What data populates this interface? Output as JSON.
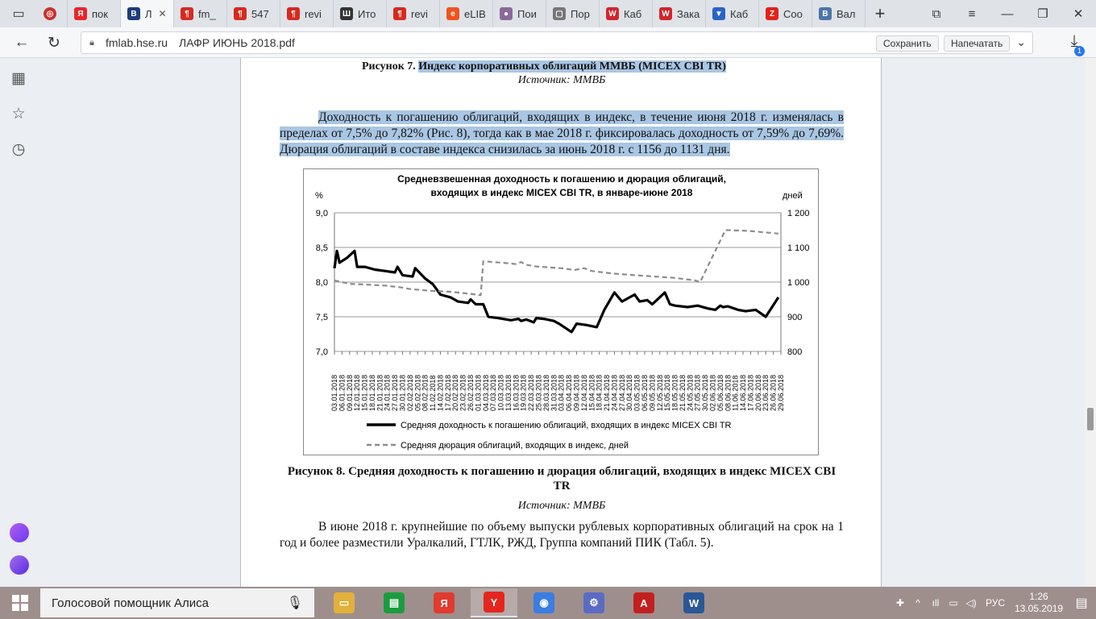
{
  "browser": {
    "tabs": [
      {
        "label": "пок",
        "icon": "yandex-icon",
        "color": "#e8262b",
        "glyph": "Я"
      },
      {
        "label": "Л",
        "icon": "hse-icon",
        "color": "#1d3d7a",
        "glyph": "В",
        "active": true
      },
      {
        "label": "fm_",
        "icon": "pdf-icon",
        "color": "#d62a1f",
        "glyph": "¶"
      },
      {
        "label": "547",
        "icon": "pdf-icon",
        "color": "#d62a1f",
        "glyph": "¶"
      },
      {
        "label": "revi",
        "icon": "pdf-icon",
        "color": "#d62a1f",
        "glyph": "¶"
      },
      {
        "label": "Ито",
        "icon": "bars-icon",
        "color": "#333333",
        "glyph": "Ш"
      },
      {
        "label": "revi",
        "icon": "pdf-icon",
        "color": "#d62a1f",
        "glyph": "¶"
      },
      {
        "label": "eLIB",
        "icon": "elibrary-icon",
        "color": "#f0531f",
        "glyph": "e"
      },
      {
        "label": "Пои",
        "icon": "avatar-icon",
        "color": "#8a6a9a",
        "glyph": "●"
      },
      {
        "label": "Пор",
        "icon": "document-icon",
        "color": "#777777",
        "glyph": "▢"
      },
      {
        "label": "Каб",
        "icon": "w-icon",
        "color": "#d0262c",
        "glyph": "W"
      },
      {
        "label": "Зака",
        "icon": "w-icon",
        "color": "#d0262c",
        "glyph": "W"
      },
      {
        "label": "Каб",
        "icon": "shield-icon",
        "color": "#2b63c4",
        "glyph": "▼"
      },
      {
        "label": "Соо",
        "icon": "zen-icon",
        "color": "#e2231a",
        "glyph": "Z"
      },
      {
        "label": "Вал",
        "icon": "vk-icon",
        "color": "#4a76a8",
        "glyph": "B"
      }
    ],
    "url_host": "fmlab.hse.ru",
    "url_title": "ЛАФР ИЮНЬ 2018.pdf",
    "save_label": "Сохранить",
    "print_label": "Напечатать",
    "downloads_count": "1"
  },
  "pdf": {
    "fig7_caption_prefix": "Рисунок 7.",
    "fig7_caption_title": "Индекс корпоративных облигаций ММВБ (MICEX CBI TR)",
    "fig7_source": "Источник: ММВБ",
    "para1": "Доходность к погашению облигаций, входящих в индекс, в течение июня 2018 г. изменялась в пределах от 7,5% до 7,82% (Рис. 8), тогда как в мае 2018 г. фиксировалась доходность от 7,59% до 7,69%. Дюрация облигаций в составе индекса снизилась за июнь 2018 г. с 1156 до 1131 дня.",
    "fig8_caption": "Рисунок 8. Средняя доходность к погашению и дюрация облигаций, входящих в индекс MICEX CBI TR",
    "fig8_source": "Источник: ММВБ",
    "para2": "В июне 2018 г. крупнейшие по объему выпуски рублевых корпоративных облигаций на срок на 1 год и более разместили Уралкалий, ГТЛК, РЖД, Группа компаний ПИК (Табл. 5)."
  },
  "chart_data": {
    "type": "line",
    "title": "Средневзвешенная доходность к погашению и дюрация облигаций, входящих  в индекс MICEX CBI TR, в январе-июне 2018",
    "ylabel_left": "%",
    "ylabel_right": "дней",
    "ylim_left": [
      7.0,
      9.0
    ],
    "ylim_right": [
      800,
      1200
    ],
    "yticks_left": [
      "9,0",
      "8,5",
      "8,0",
      "7,5",
      "7,0"
    ],
    "yticks_right": [
      "1 200",
      "1 100",
      "1 000",
      "900",
      "800"
    ],
    "grid": true,
    "legend_position": "bottom",
    "x_labels": [
      "03.01.2018",
      "06.01.2018",
      "09.01.2018",
      "12.01.2018",
      "15.01.2018",
      "18.01.2018",
      "21.01.2018",
      "24.01.2018",
      "27.01.2018",
      "30.01.2018",
      "02.02.2018",
      "05.02.2018",
      "08.02.2018",
      "11.02.2018",
      "14.02.2018",
      "17.02.2018",
      "20.02.2018",
      "23.02.2018",
      "26.02.2018",
      "01.03.2018",
      "04.03.2018",
      "07.03.2018",
      "10.03.2018",
      "13.03.2018",
      "16.03.2018",
      "19.03.2018",
      "22.03.2018",
      "25.03.2018",
      "28.03.2018",
      "31.03.2018",
      "03.04.2018",
      "06.04.2018",
      "09.04.2018",
      "12.04.2018",
      "15.04.2018",
      "18.04.2018",
      "21.04.2018",
      "24.04.2018",
      "27.04.2018",
      "30.04.2018",
      "03.05.2018",
      "06.05.2018",
      "09.05.2018",
      "12.05.2018",
      "15.05.2018",
      "18.05.2018",
      "21.05.2018",
      "24.05.2018",
      "27.05.2018",
      "30.05.2018",
      "02.06.2018",
      "05.06.2018",
      "08.06.2018",
      "11.06.2018",
      "14.06.2018",
      "17.06.2018",
      "20.06.2018",
      "23.06.2018",
      "26.06.2018",
      "29.06.2018"
    ],
    "series": [
      {
        "name": "Средняя доходность к погашению облигаций, входящих в индекс MICEX CBI TR",
        "axis": "left",
        "style": "solid",
        "color": "#000000",
        "x": [
          0,
          1,
          2,
          5,
          8,
          9,
          12,
          16,
          20,
          24,
          25,
          27,
          31,
          32,
          36,
          39,
          42,
          46,
          49,
          53,
          54,
          56,
          59,
          61,
          65,
          70,
          73,
          74,
          76,
          79,
          80,
          83,
          87,
          89,
          94,
          96,
          100,
          104,
          107,
          111,
          114,
          119,
          121,
          124,
          126,
          131,
          133,
          135,
          140,
          144,
          148,
          151,
          153,
          154,
          156,
          160,
          163,
          167,
          171,
          176
        ],
        "values": [
          8.2,
          8.45,
          8.28,
          8.35,
          8.45,
          8.22,
          8.22,
          8.18,
          8.16,
          8.14,
          8.22,
          8.1,
          8.08,
          8.2,
          8.05,
          7.97,
          7.82,
          7.78,
          7.72,
          7.7,
          7.75,
          7.68,
          7.68,
          7.5,
          7.48,
          7.45,
          7.47,
          7.44,
          7.46,
          7.42,
          7.48,
          7.47,
          7.44,
          7.4,
          7.28,
          7.4,
          7.38,
          7.35,
          7.6,
          7.85,
          7.72,
          7.82,
          7.72,
          7.74,
          7.68,
          7.85,
          7.68,
          7.66,
          7.64,
          7.66,
          7.62,
          7.6,
          7.66,
          7.64,
          7.65,
          7.6,
          7.58,
          7.6,
          7.5,
          7.78
        ]
      },
      {
        "name": "Средняя дюрация облигаций, входящих в индекс, дней",
        "axis": "right",
        "style": "dashed",
        "color": "#8c8c8c",
        "x": [
          0,
          6,
          12,
          20,
          26,
          30,
          38,
          46,
          54,
          58,
          59,
          63,
          68,
          72,
          74,
          76,
          80,
          90,
          95,
          99,
          102,
          110,
          119,
          127,
          135,
          143,
          145,
          155,
          164,
          176
        ],
        "values": [
          1005,
          995,
          993,
          990,
          985,
          980,
          975,
          972,
          966,
          962,
          1060,
          1058,
          1055,
          1052,
          1058,
          1050,
          1045,
          1040,
          1035,
          1040,
          1032,
          1025,
          1020,
          1016,
          1012,
          1005,
          1000,
          1150,
          1148,
          1140
        ]
      }
    ]
  },
  "sidebar": {
    "icons": [
      "apps-icon",
      "star-icon",
      "history-icon"
    ]
  },
  "taskbar": {
    "search_placeholder": "Голосовой помощник Алиса",
    "apps": [
      {
        "name": "taskbar-explorer",
        "color": "#e2b03b",
        "glyph": "▭"
      },
      {
        "name": "taskbar-store",
        "color": "#1a9c3e",
        "glyph": "▤"
      },
      {
        "name": "taskbar-yandex-market",
        "color": "#e23a2e",
        "glyph": "Я"
      },
      {
        "name": "taskbar-yandex-browser",
        "color": "#e52620",
        "glyph": "Y",
        "active": true
      },
      {
        "name": "taskbar-chrome",
        "color": "#3b7de0",
        "glyph": "◉"
      },
      {
        "name": "taskbar-settings",
        "color": "#5a6bc4",
        "glyph": "⚙"
      },
      {
        "name": "taskbar-acrobat",
        "color": "#c41f1f",
        "glyph": "A"
      },
      {
        "name": "taskbar-word",
        "color": "#2b5797",
        "glyph": "W"
      }
    ],
    "lang": "РУС",
    "time": "1:26",
    "date": "13.05.2019"
  }
}
